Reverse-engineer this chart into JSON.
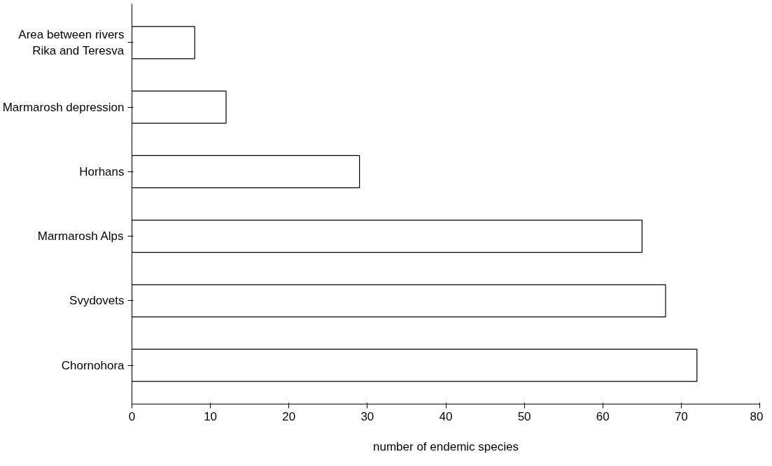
{
  "chart_data": {
    "type": "bar",
    "orientation": "horizontal",
    "xlabel": "number of endemic species",
    "categories": [
      "Area between rivers Rika and Teresva",
      "Marmarosh depression",
      "Horhans",
      "Marmarosh Alps",
      "Svydovets",
      "Chornohora"
    ],
    "values": [
      8,
      12,
      29,
      65,
      68,
      72
    ],
    "color": "#ffffff",
    "xlim": [
      0,
      80
    ],
    "xticks": [
      0,
      10,
      20,
      30,
      40,
      50,
      60,
      70,
      80
    ],
    "grid": false
  }
}
